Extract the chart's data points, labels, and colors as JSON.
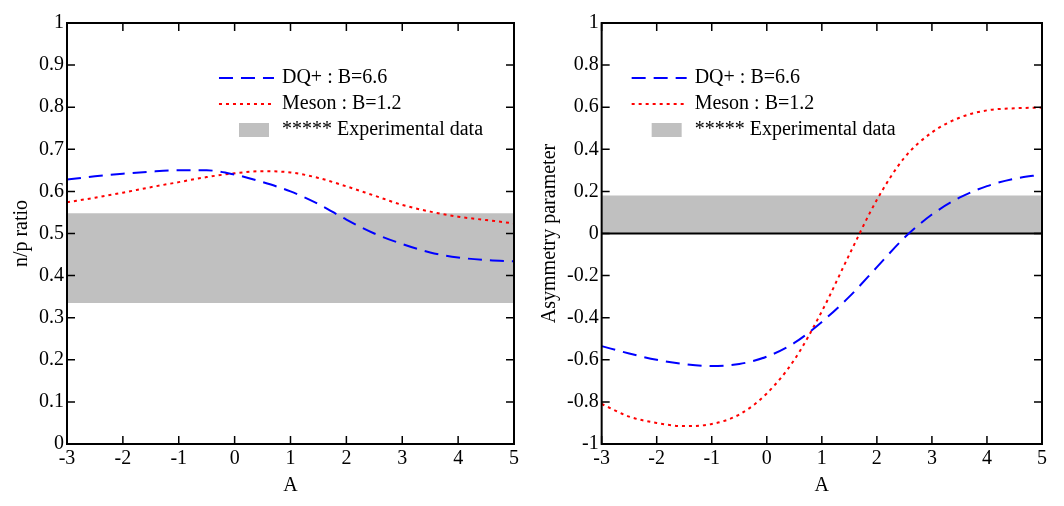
{
  "chart_data": [
    {
      "type": "line",
      "xlabel": "A",
      "ylabel": "n/p ratio",
      "x": [
        -3,
        -2.5,
        -2,
        -1.5,
        -1,
        -0.5,
        0,
        0.5,
        1,
        1.5,
        2,
        2.5,
        3,
        3.5,
        4,
        4.5,
        5
      ],
      "xlim": [
        -3,
        5
      ],
      "xticks": [
        -3,
        -2,
        -1,
        0,
        1,
        2,
        3,
        4,
        5
      ],
      "ylim": [
        0,
        1
      ],
      "yticks": [
        0,
        0.1,
        0.2,
        0.3,
        0.4,
        0.5,
        0.6,
        0.7,
        0.8,
        0.9,
        1
      ],
      "grid": false,
      "legend": "top right",
      "marker": "none",
      "series": [
        {
          "name": "DQ+ : B=6.6",
          "color": "#0000ff",
          "line_style": "dashed",
          "values": [
            0.628,
            0.636,
            0.642,
            0.647,
            0.65,
            0.65,
            0.64,
            0.622,
            0.6,
            0.57,
            0.533,
            0.5,
            0.475,
            0.455,
            0.443,
            0.437,
            0.434
          ]
        },
        {
          "name": "Meson : B=1.2",
          "color": "#ff0000",
          "line_style": "dotted",
          "values": [
            0.574,
            0.585,
            0.597,
            0.61,
            0.622,
            0.634,
            0.643,
            0.648,
            0.645,
            0.632,
            0.612,
            0.59,
            0.568,
            0.552,
            0.54,
            0.532,
            0.524
          ]
        }
      ],
      "bands": [
        {
          "axis": "y",
          "from": 0.335,
          "to": 0.548,
          "label": "***** Experimental data",
          "color": "#c0c0c0"
        }
      ]
    },
    {
      "type": "line",
      "xlabel": "A",
      "ylabel": "Asymmetry parameter",
      "x": [
        -3,
        -2.5,
        -2,
        -1.5,
        -1,
        -0.5,
        0,
        0.5,
        1,
        1.5,
        2,
        2.5,
        3,
        3.5,
        4,
        4.5,
        5
      ],
      "xlim": [
        -3,
        5
      ],
      "xticks": [
        -3,
        -2,
        -1,
        0,
        1,
        2,
        3,
        4,
        5
      ],
      "ylim": [
        -1,
        1
      ],
      "yticks": [
        -1,
        -0.8,
        -0.6,
        -0.4,
        -0.2,
        0,
        0.2,
        0.4,
        0.6,
        0.8,
        1
      ],
      "grid": false,
      "legend": "top left",
      "marker": "none",
      "series": [
        {
          "name": "DQ+ : B=6.6",
          "color": "#0000ff",
          "line_style": "dashed",
          "values": [
            -0.535,
            -0.57,
            -0.6,
            -0.62,
            -0.63,
            -0.62,
            -0.585,
            -0.52,
            -0.42,
            -0.3,
            -0.16,
            -0.02,
            0.09,
            0.17,
            0.225,
            0.26,
            0.28
          ]
        },
        {
          "name": "Meson : B=1.2",
          "color": "#ff0000",
          "line_style": "dotted",
          "values": [
            -0.81,
            -0.87,
            -0.9,
            -0.915,
            -0.905,
            -0.86,
            -0.76,
            -0.6,
            -0.37,
            -0.1,
            0.16,
            0.36,
            0.48,
            0.55,
            0.585,
            0.595,
            0.598
          ]
        }
      ],
      "bands": [
        {
          "axis": "y",
          "from": 0,
          "to": 0.18,
          "label": "***** Experimental data",
          "color": "#c0c0c0"
        }
      ],
      "ref_lines": [
        {
          "axis": "y",
          "value": 0,
          "color": "#000000"
        }
      ]
    }
  ]
}
